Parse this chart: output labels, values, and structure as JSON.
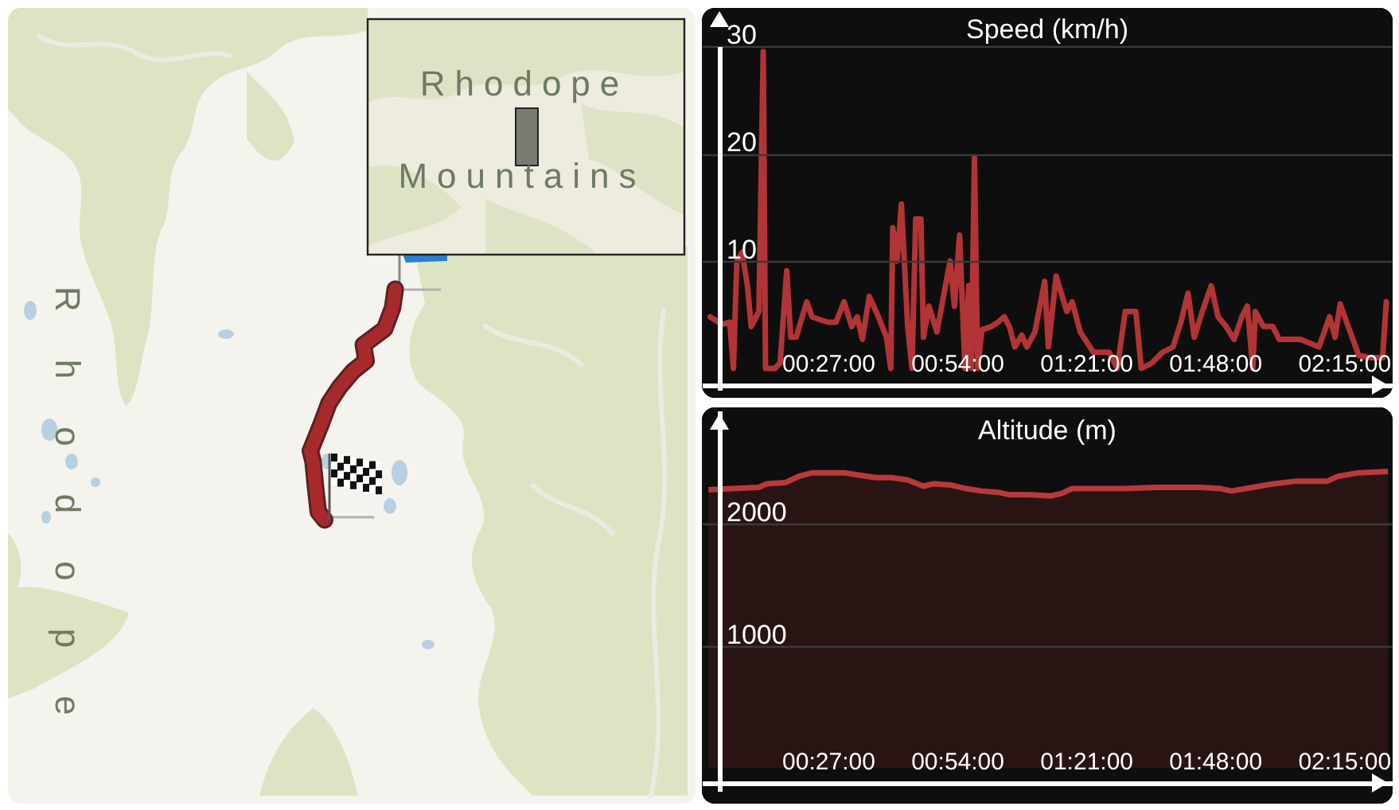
{
  "chart_data": [
    {
      "type": "other",
      "annotations": [
        "Rhodope",
        "Mountains",
        "Rhodope"
      ]
    },
    {
      "type": "line",
      "title": "Speed (km/h)",
      "x": [
        0.039,
        0.08,
        0.107,
        0.12,
        0.132,
        0.15,
        0.169,
        0.182,
        0.209,
        0.224,
        0.232,
        0.265,
        0.283,
        0.306,
        0.32,
        0.339,
        0.376,
        0.394,
        0.45,
        0.478,
        0.506,
        0.533,
        0.552,
        0.57,
        0.594,
        0.626,
        0.654,
        0.669,
        0.676,
        0.691,
        0.706,
        0.728,
        0.743,
        0.756,
        0.774,
        0.783,
        0.802,
        0.83,
        0.876,
        0.891,
        0.909,
        0.928,
        0.941,
        0.95,
        0.961,
        0.972,
        0.987,
        1.02,
        1.043,
        1.065,
        1.083,
        1.102,
        1.126,
        1.144,
        1.172,
        1.206,
        1.219,
        1.246,
        1.283,
        1.302,
        1.33,
        1.376,
        1.431,
        1.459,
        1.487,
        1.524,
        1.543,
        1.58,
        1.617,
        1.654,
        1.681,
        1.706,
        1.728,
        1.756,
        1.787,
        1.811,
        1.839,
        1.867,
        1.894,
        1.913,
        1.932,
        1.941,
        1.969,
        2.002,
        2.024,
        2.098,
        2.163,
        2.2,
        2.219,
        2.237,
        2.265,
        2.302,
        2.339,
        2.385,
        2.398
      ],
      "series": [
        {
          "color": "#b23436",
          "values": [
            4.8,
            4.1,
            4.3,
            0,
            10.0,
            10.8,
            7.7,
            3.9,
            5.3,
            29.5,
            0,
            0,
            0.5,
            9.1,
            2.9,
            2.9,
            6.2,
            4.8,
            4.3,
            4.3,
            6.2,
            3.9,
            4.8,
            2.7,
            6.7,
            4.8,
            2.9,
            0,
            13.1,
            10.0,
            15.3,
            3.9,
            0,
            13.9,
            13.9,
            2.9,
            5.8,
            3.4,
            10.0,
            5.8,
            12.4,
            0,
            7.7,
            0,
            19.6,
            0,
            3.6,
            3.9,
            4.3,
            4.8,
            3.9,
            2.0,
            3.1,
            2.0,
            3.4,
            8.1,
            2.0,
            8.6,
            5.3,
            6.2,
            3.4,
            1.5,
            1.5,
            0,
            5.3,
            5.3,
            0,
            0.5,
            1.5,
            2.0,
            4.3,
            7.0,
            2.9,
            5.3,
            7.7,
            4.8,
            3.9,
            2.7,
            4.8,
            5.8,
            0,
            5.3,
            3.9,
            3.9,
            2.7,
            2.7,
            2.0,
            4.8,
            2.9,
            6.0,
            3.9,
            1.2,
            1.0,
            1.0,
            6.2
          ]
        }
      ],
      "xlim": [
        0.01,
        2.42
      ],
      "xticks": [
        {
          "value": 0.45,
          "label": "00:27:00"
        },
        {
          "value": 0.9,
          "label": "00:54:00"
        },
        {
          "value": 1.35,
          "label": "01:21:00"
        },
        {
          "value": 1.8,
          "label": "01:48:00"
        },
        {
          "value": 2.25,
          "label": "02:15:00"
        }
      ],
      "ylim": [
        -2,
        30
      ],
      "yticks": [
        10,
        20,
        30
      ],
      "grid": "y"
    },
    {
      "type": "area",
      "title": "Altitude (m)",
      "x": [
        0.033,
        0.117,
        0.209,
        0.237,
        0.302,
        0.348,
        0.394,
        0.506,
        0.561,
        0.617,
        0.672,
        0.728,
        0.783,
        0.82,
        0.876,
        0.932,
        0.987,
        1.043,
        1.08,
        1.154,
        1.228,
        1.265,
        1.302,
        1.357,
        1.487,
        1.598,
        1.672,
        1.746,
        1.82,
        1.857,
        1.932,
        2.006,
        2.08,
        2.191,
        2.228,
        2.302,
        2.404
      ],
      "series": [
        {
          "color": "#b8393b",
          "values": [
            2280,
            2290,
            2300,
            2330,
            2340,
            2390,
            2420,
            2420,
            2400,
            2380,
            2380,
            2360,
            2310,
            2330,
            2320,
            2290,
            2270,
            2260,
            2240,
            2240,
            2230,
            2250,
            2290,
            2290,
            2290,
            2300,
            2300,
            2300,
            2290,
            2270,
            2300,
            2330,
            2350,
            2350,
            2390,
            2420,
            2430
          ]
        }
      ],
      "xlim": [
        0.01,
        2.42
      ],
      "xticks": [
        {
          "value": 0.45,
          "label": "00:27:00"
        },
        {
          "value": 0.9,
          "label": "00:54:00"
        },
        {
          "value": 1.35,
          "label": "01:21:00"
        },
        {
          "value": 1.8,
          "label": "01:48:00"
        },
        {
          "value": 2.25,
          "label": "02:15:00"
        }
      ],
      "ylim": [
        -190,
        2930
      ],
      "yticks": [
        1000,
        2000
      ],
      "grid": "y"
    }
  ]
}
